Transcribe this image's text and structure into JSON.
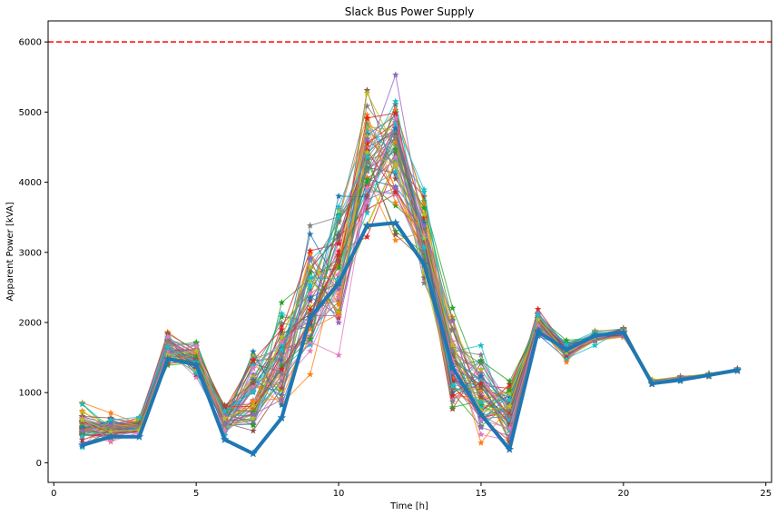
{
  "chart_data": {
    "type": "line",
    "title": "Slack Bus Power Supply",
    "xlabel": "Time [h]",
    "ylabel": "Apparent Power [kVA]",
    "xlim": [
      -0.2,
      25.2
    ],
    "ylim": [
      -280,
      6300
    ],
    "xticks": [
      0,
      5,
      10,
      15,
      20,
      25
    ],
    "yticks": [
      0,
      1000,
      2000,
      3000,
      4000,
      5000,
      6000
    ],
    "grid": false,
    "legend": "none",
    "marker": "star",
    "threshold": {
      "y": 6000,
      "color": "#ff0000",
      "style": "dashed"
    },
    "scenario_count": 60,
    "scenario_colors": [
      "#1f77b4",
      "#ff7f0e",
      "#2ca02c",
      "#d62728",
      "#9467bd",
      "#8c564b",
      "#e377c2",
      "#7f7f7f",
      "#bcbd22",
      "#17becf"
    ],
    "scenario_band": {
      "hours": [
        1,
        2,
        3,
        4,
        5,
        6,
        7,
        8,
        9,
        10,
        11,
        12,
        13,
        14,
        15,
        16,
        17,
        18,
        19,
        20,
        21,
        22,
        23,
        24
      ],
      "low": [
        100,
        280,
        330,
        1260,
        1150,
        300,
        110,
        370,
        960,
        1160,
        2900,
        3000,
        2350,
        420,
        70,
        20,
        1770,
        1380,
        1670,
        1760,
        1100,
        1150,
        1220,
        1300
      ],
      "high": [
        960,
        720,
        720,
        1990,
        1790,
        900,
        1870,
        2450,
        3520,
        4340,
        5590,
        5620,
        4110,
        2410,
        1960,
        1330,
        2220,
        1780,
        1910,
        1950,
        1200,
        1240,
        1280,
        1350
      ]
    },
    "series": [
      {
        "color": "#1f77b4",
        "emphasis": true,
        "x": [
          1,
          2,
          3,
          4,
          5,
          6,
          7,
          8,
          9,
          10,
          11,
          12,
          13,
          14,
          15,
          16,
          17,
          18,
          19,
          20,
          21,
          22,
          23,
          24
        ],
        "y": [
          250,
          370,
          370,
          1480,
          1400,
          330,
          130,
          640,
          2070,
          2560,
          3380,
          3420,
          2830,
          1360,
          690,
          190,
          1870,
          1610,
          1810,
          1860,
          1130,
          1180,
          1250,
          1320
        ]
      }
    ]
  }
}
